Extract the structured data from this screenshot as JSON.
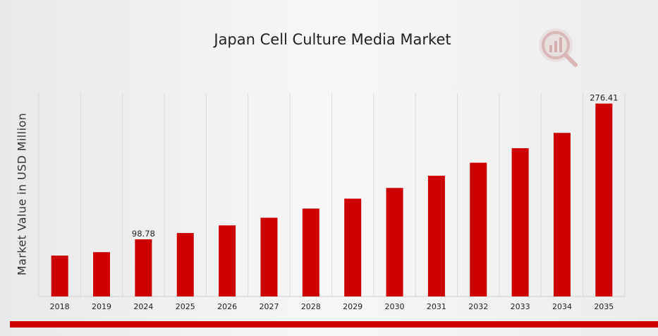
{
  "colors": {
    "bar": "#cc0000",
    "grid": "#d9d9d9",
    "accent_bar": "#cc0000"
  },
  "logo": {
    "icon": "magnifier-bar-chart-logo"
  },
  "chart_data": {
    "type": "bar",
    "title": "Japan Cell Culture Media Market",
    "xlabel": "",
    "ylabel": "Market Value in USD Million",
    "categories": [
      "2018",
      "2019",
      "2024",
      "2025",
      "2026",
      "2027",
      "2028",
      "2029",
      "2030",
      "2031",
      "2032",
      "2033",
      "2034",
      "2035"
    ],
    "values": [
      77.5,
      82.0,
      98.78,
      107.0,
      117.0,
      127.0,
      139.0,
      152.0,
      166.0,
      182.0,
      199.0,
      218.0,
      238.0,
      276.41
    ],
    "data_labels": [
      {
        "category": "2024",
        "text": "98.78"
      },
      {
        "category": "2035",
        "text": "276.41"
      }
    ],
    "ylim": [
      24,
      290
    ],
    "grid": true,
    "legend": "none"
  }
}
